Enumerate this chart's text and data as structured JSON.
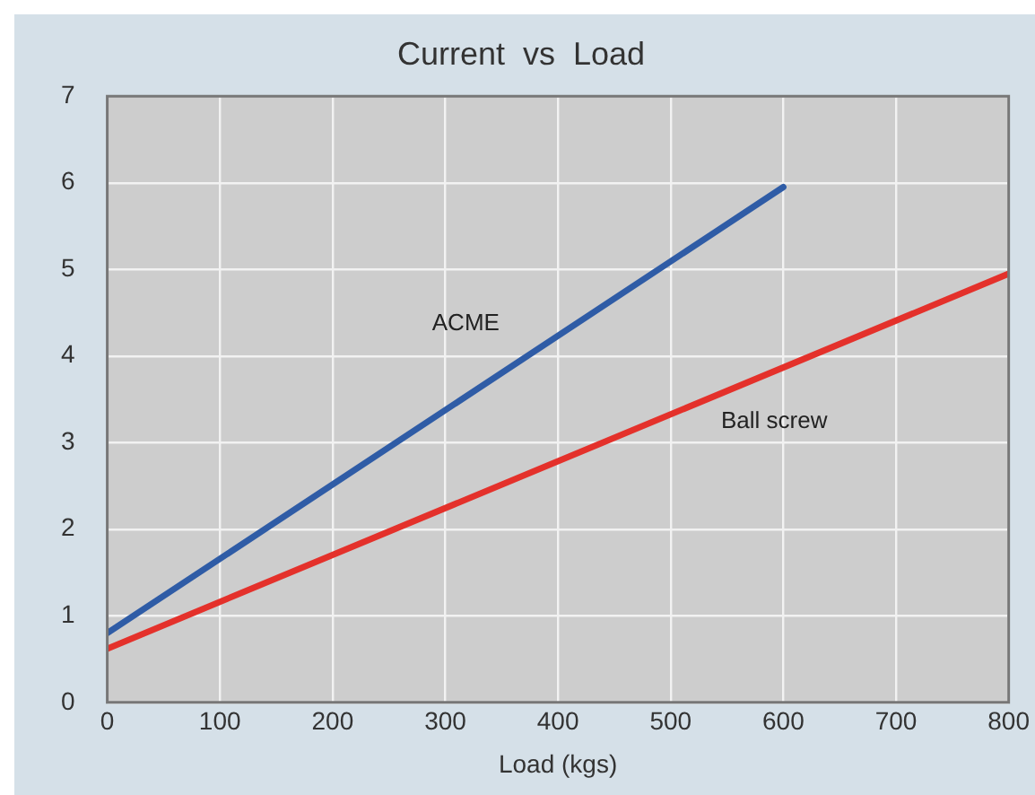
{
  "chart_data": {
    "type": "line",
    "title": "Current  vs  Load",
    "xlabel": "Load (kgs)",
    "xlim": [
      0,
      800
    ],
    "xticks": [
      0,
      100,
      200,
      300,
      400,
      500,
      600,
      700,
      800
    ],
    "ylim": [
      0,
      7
    ],
    "yticks": [
      0,
      1,
      2,
      3,
      4,
      5,
      6,
      7
    ],
    "grid": true,
    "legend": false,
    "marker": "none",
    "line_style": "solid",
    "series": [
      {
        "name": "ACME",
        "color": "#2f5ca6",
        "x": [
          0,
          600
        ],
        "values": [
          0.8,
          5.95
        ]
      },
      {
        "name": "Ball screw",
        "color": "#e4312b",
        "x": [
          0,
          800
        ],
        "values": [
          0.62,
          4.95
        ]
      }
    ]
  }
}
